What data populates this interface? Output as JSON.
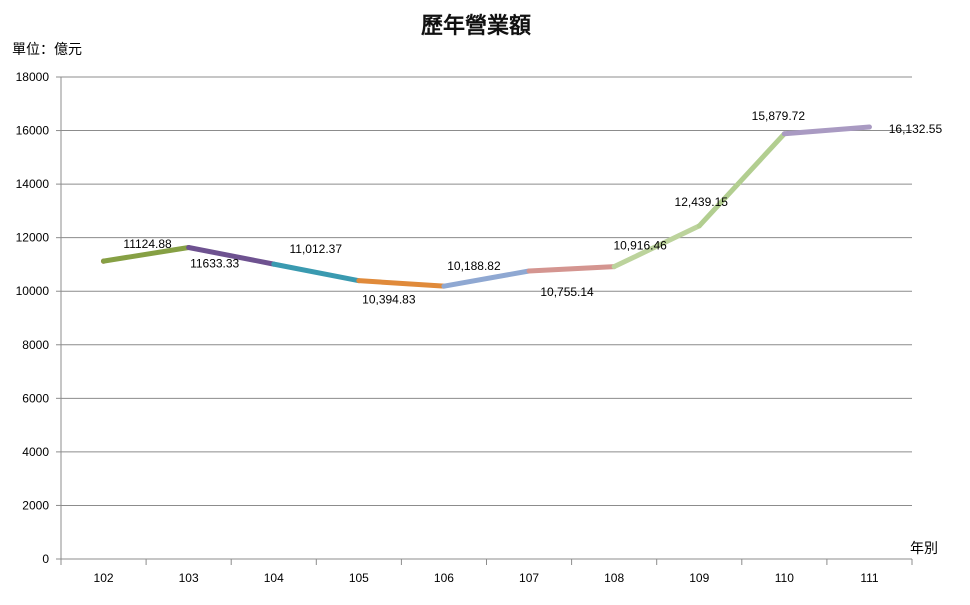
{
  "chart_data": {
    "type": "line",
    "title": "歷年營業額",
    "ylabel": "單位：億元",
    "xlabel": "年別",
    "ylim": [
      0,
      18000
    ],
    "yticks": [
      0,
      2000,
      4000,
      6000,
      8000,
      10000,
      12000,
      14000,
      16000,
      18000
    ],
    "categories": [
      "102",
      "103",
      "104",
      "105",
      "106",
      "107",
      "108",
      "109",
      "110",
      "111"
    ],
    "values": [
      11124.88,
      11633.33,
      11012.37,
      10394.83,
      10188.82,
      10755.14,
      10916.46,
      12439.15,
      15879.72,
      16132.55
    ],
    "data_labels": [
      "11124.88",
      "11633.33",
      "11,012.37",
      "10,394.83",
      "10,188.82",
      "10,755.14",
      "10,916.46",
      "12,439.15",
      "15,879.72",
      "16,132.55"
    ],
    "segment_colors": [
      "#A0403C",
      "#86A044",
      "#6E5290",
      "#3A9AB0",
      "#E08A3A",
      "#8FA8D2",
      "#D49590",
      "#BCD39C",
      "#B2CE90",
      "#A99AC2"
    ],
    "grid": true
  }
}
